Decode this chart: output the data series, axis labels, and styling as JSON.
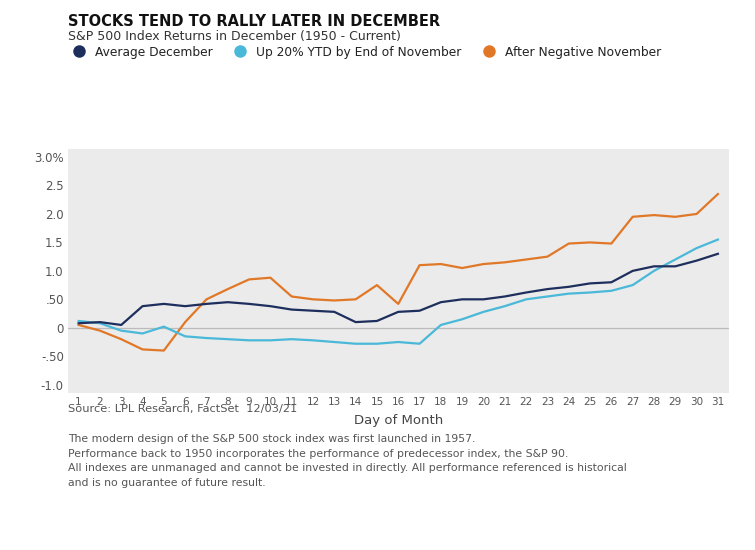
{
  "title": "STOCKS TEND TO RALLY LATER IN DECEMBER",
  "subtitle": "S&P 500 Index Returns in December (1950 - Current)",
  "xlabel": "Day of Month",
  "background_color": "#ebebeb",
  "outer_background": "#ffffff",
  "days": [
    1,
    2,
    3,
    4,
    5,
    6,
    7,
    8,
    9,
    10,
    11,
    12,
    13,
    14,
    15,
    16,
    17,
    18,
    19,
    20,
    21,
    22,
    23,
    24,
    25,
    26,
    27,
    28,
    29,
    30,
    31
  ],
  "avg_december": [
    0.08,
    0.1,
    0.05,
    0.38,
    0.42,
    0.38,
    0.42,
    0.45,
    0.42,
    0.38,
    0.32,
    0.3,
    0.28,
    0.1,
    0.12,
    0.28,
    0.3,
    0.45,
    0.5,
    0.5,
    0.55,
    0.62,
    0.68,
    0.72,
    0.78,
    0.8,
    1.0,
    1.08,
    1.08,
    1.18,
    1.3
  ],
  "up20_ytd": [
    0.12,
    0.08,
    -0.05,
    -0.1,
    0.02,
    -0.15,
    -0.18,
    -0.2,
    -0.22,
    -0.22,
    -0.2,
    -0.22,
    -0.25,
    -0.28,
    -0.28,
    -0.25,
    -0.28,
    0.05,
    0.15,
    0.28,
    0.38,
    0.5,
    0.55,
    0.6,
    0.62,
    0.65,
    0.75,
    1.0,
    1.2,
    1.4,
    1.55
  ],
  "neg_november": [
    0.05,
    -0.05,
    -0.2,
    -0.38,
    -0.4,
    0.1,
    0.5,
    0.68,
    0.85,
    0.88,
    0.55,
    0.5,
    0.48,
    0.5,
    0.75,
    0.42,
    1.1,
    1.12,
    1.05,
    1.12,
    1.15,
    1.2,
    1.25,
    1.48,
    1.5,
    1.48,
    1.95,
    1.98,
    1.95,
    2.0,
    2.35
  ],
  "avg_december_color": "#1e2f5e",
  "up20_ytd_color": "#4ab8d8",
  "neg_november_color": "#e07828",
  "legend_labels": [
    "Average December",
    "Up 20% YTD by End of November",
    "After Negative November"
  ],
  "ytick_labels": [
    "3.0%",
    "2.5",
    "2.0",
    "1.5",
    "1.0",
    ".50",
    "0",
    "-.50",
    "-1.0"
  ],
  "ytick_values": [
    3.0,
    2.5,
    2.0,
    1.5,
    1.0,
    0.5,
    0.0,
    -0.5,
    -1.0
  ],
  "ylim": [
    -1.15,
    3.15
  ],
  "source_text": "Source: LPL Research, FactSet  12/03/21",
  "footnote_line1": "The modern design of the S&P 500 stock index was first launched in 1957.",
  "footnote_line2": "Performance back to 1950 incorporates the performance of predecessor index, the S&P 90.",
  "footnote_line3": "All indexes are unmanaged and cannot be invested in directly. All performance referenced is historical",
  "footnote_line4": "and is no guarantee of future result."
}
